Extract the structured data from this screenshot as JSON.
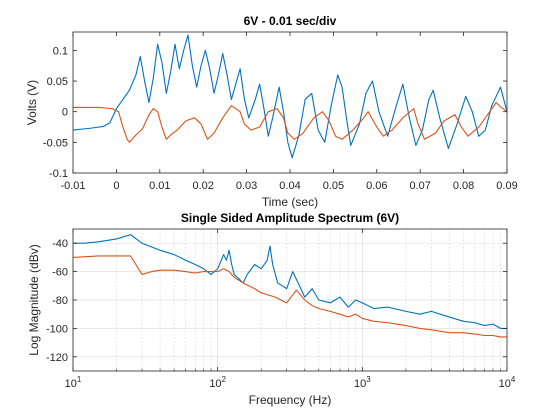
{
  "chart_data": [
    {
      "type": "line",
      "title": "6V - 0.01 sec/div",
      "xlabel": "Time (sec)",
      "ylabel": "Volts (V)",
      "xlim": [
        -0.01,
        0.09
      ],
      "ylim": [
        -0.1,
        0.13
      ],
      "xticks": [
        -0.01,
        0,
        0.01,
        0.02,
        0.03,
        0.04,
        0.05,
        0.06,
        0.07,
        0.08,
        0.09
      ],
      "xtick_labels": [
        "-0.01",
        "0",
        "0.01",
        "0.02",
        "0.03",
        "0.04",
        "0.05",
        "0.06",
        "0.07",
        "0.08",
        "0.09"
      ],
      "yticks": [
        -0.1,
        -0.05,
        0,
        0.05,
        0.1
      ],
      "ytick_labels": [
        "-0.1",
        "-0.05",
        "0",
        "0.05",
        "0.1"
      ],
      "grid": false,
      "series": [
        {
          "color": "#0072BD",
          "points": [
            [
              -0.01,
              -0.03
            ],
            [
              -0.006,
              -0.027
            ],
            [
              -0.003,
              -0.024
            ],
            [
              -0.0015,
              -0.018
            ],
            [
              0,
              0.005
            ],
            [
              0.0015,
              0.02
            ],
            [
              0.003,
              0.035
            ],
            [
              0.0045,
              0.06
            ],
            [
              0.0055,
              0.09
            ],
            [
              0.0065,
              0.05
            ],
            [
              0.0075,
              0.015
            ],
            [
              0.0085,
              0.055
            ],
            [
              0.0095,
              0.11
            ],
            [
              0.0105,
              0.08
            ],
            [
              0.0115,
              0.03
            ],
            [
              0.0125,
              0.065
            ],
            [
              0.0135,
              0.11
            ],
            [
              0.0145,
              0.07
            ],
            [
              0.0155,
              0.1
            ],
            [
              0.0165,
              0.125
            ],
            [
              0.0175,
              0.075
            ],
            [
              0.0185,
              0.04
            ],
            [
              0.0195,
              0.075
            ],
            [
              0.0205,
              0.1
            ],
            [
              0.0215,
              0.07
            ],
            [
              0.0225,
              0.03
            ],
            [
              0.0235,
              0.06
            ],
            [
              0.0245,
              0.095
            ],
            [
              0.0255,
              0.06
            ],
            [
              0.0265,
              0.02
            ],
            [
              0.0275,
              0.045
            ],
            [
              0.0285,
              0.07
            ],
            [
              0.0295,
              0.02
            ],
            [
              0.0305,
              -0.01
            ],
            [
              0.032,
              0.02
            ],
            [
              0.033,
              0.045
            ],
            [
              0.034,
              0.005
            ],
            [
              0.035,
              -0.04
            ],
            [
              0.036,
              -0.01
            ],
            [
              0.0375,
              0.04
            ],
            [
              0.0385,
              0.0
            ],
            [
              0.0395,
              -0.05
            ],
            [
              0.0405,
              -0.075
            ],
            [
              0.042,
              -0.04
            ],
            [
              0.0435,
              0.02
            ],
            [
              0.045,
              0.03
            ],
            [
              0.0465,
              -0.03
            ],
            [
              0.048,
              -0.05
            ],
            [
              0.0495,
              0.01
            ],
            [
              0.051,
              0.06
            ],
            [
              0.052,
              0.04
            ],
            [
              0.053,
              -0.01
            ],
            [
              0.054,
              -0.055
            ],
            [
              0.056,
              -0.02
            ],
            [
              0.0575,
              0.03
            ],
            [
              0.059,
              0.05
            ],
            [
              0.0605,
              0.0
            ],
            [
              0.0625,
              -0.04
            ],
            [
              0.0645,
              0.01
            ],
            [
              0.066,
              0.045
            ],
            [
              0.0675,
              -0.01
            ],
            [
              0.069,
              -0.055
            ],
            [
              0.0705,
              -0.03
            ],
            [
              0.072,
              0.02
            ],
            [
              0.073,
              0.035
            ],
            [
              0.0745,
              -0.01
            ],
            [
              0.0765,
              -0.06
            ],
            [
              0.0785,
              -0.02
            ],
            [
              0.0805,
              0.025
            ],
            [
              0.082,
              0.0
            ],
            [
              0.0835,
              -0.04
            ],
            [
              0.085,
              -0.03
            ],
            [
              0.0865,
              0.01
            ],
            [
              0.0875,
              0.025
            ],
            [
              0.0885,
              0.04
            ],
            [
              0.09,
              0.0
            ]
          ]
        },
        {
          "color": "#D95319",
          "points": [
            [
              -0.01,
              0.007
            ],
            [
              -0.004,
              0.007
            ],
            [
              -0.001,
              0.005
            ],
            [
              0.0005,
              0.0
            ],
            [
              0.0015,
              -0.025
            ],
            [
              0.0025,
              -0.045
            ],
            [
              0.003,
              -0.05
            ],
            [
              0.0045,
              -0.038
            ],
            [
              0.006,
              -0.028
            ],
            [
              0.0075,
              -0.005
            ],
            [
              0.0085,
              0.005
            ],
            [
              0.0095,
              0.0
            ],
            [
              0.0105,
              -0.025
            ],
            [
              0.0115,
              -0.045
            ],
            [
              0.0125,
              -0.038
            ],
            [
              0.014,
              -0.03
            ],
            [
              0.016,
              -0.015
            ],
            [
              0.018,
              -0.01
            ],
            [
              0.0195,
              -0.02
            ],
            [
              0.021,
              -0.045
            ],
            [
              0.0225,
              -0.035
            ],
            [
              0.0245,
              -0.01
            ],
            [
              0.0265,
              0.01
            ],
            [
              0.0285,
              0.0
            ],
            [
              0.0295,
              -0.02
            ],
            [
              0.031,
              -0.03
            ],
            [
              0.033,
              -0.025
            ],
            [
              0.035,
              0.0
            ],
            [
              0.037,
              0.005
            ],
            [
              0.0385,
              -0.01
            ],
            [
              0.0395,
              -0.035
            ],
            [
              0.041,
              -0.045
            ],
            [
              0.043,
              -0.035
            ],
            [
              0.0455,
              -0.01
            ],
            [
              0.0475,
              0.0
            ],
            [
              0.049,
              -0.015
            ],
            [
              0.0505,
              -0.04
            ],
            [
              0.052,
              -0.045
            ],
            [
              0.0545,
              -0.03
            ],
            [
              0.057,
              -0.01
            ],
            [
              0.058,
              0.0
            ],
            [
              0.06,
              -0.025
            ],
            [
              0.0615,
              -0.04
            ],
            [
              0.0635,
              -0.03
            ],
            [
              0.066,
              -0.01
            ],
            [
              0.0685,
              0.005
            ],
            [
              0.0695,
              -0.02
            ],
            [
              0.071,
              -0.045
            ],
            [
              0.0735,
              -0.035
            ],
            [
              0.0755,
              -0.015
            ],
            [
              0.078,
              -0.005
            ],
            [
              0.0795,
              -0.025
            ],
            [
              0.081,
              -0.04
            ],
            [
              0.0835,
              -0.025
            ],
            [
              0.0855,
              -0.005
            ],
            [
              0.0875,
              0.015
            ],
            [
              0.0885,
              0.008
            ],
            [
              0.09,
              0.0
            ]
          ]
        }
      ]
    },
    {
      "type": "line",
      "title": "Single Sided Amplitude Spectrum (6V)",
      "xlabel": "Frequency (Hz)",
      "ylabel": "Log Magnitude (dBv)",
      "xscale": "log",
      "xlim": [
        10,
        10000
      ],
      "ylim": [
        -130,
        -30
      ],
      "xticks": [
        10,
        100,
        1000,
        10000
      ],
      "xtick_labels": [
        {
          "base": "10",
          "exp": "1"
        },
        {
          "base": "10",
          "exp": "2"
        },
        {
          "base": "10",
          "exp": "3"
        },
        {
          "base": "10",
          "exp": "4"
        }
      ],
      "yticks": [
        -120,
        -100,
        -80,
        -60,
        -40
      ],
      "ytick_labels": [
        "-120",
        "-100",
        "-80",
        "-60",
        "-40"
      ],
      "grid": true,
      "series": [
        {
          "color": "#0072BD",
          "points": [
            [
              10,
              -40
            ],
            [
              12,
              -40
            ],
            [
              15,
              -39
            ],
            [
              20,
              -37
            ],
            [
              25,
              -34
            ],
            [
              30,
              -40
            ],
            [
              40,
              -45
            ],
            [
              50,
              -48
            ],
            [
              60,
              -52
            ],
            [
              70,
              -55
            ],
            [
              80,
              -58
            ],
            [
              90,
              -62
            ],
            [
              100,
              -58
            ],
            [
              110,
              -48
            ],
            [
              115,
              -52
            ],
            [
              120,
              -45
            ],
            [
              125,
              -55
            ],
            [
              130,
              -62
            ],
            [
              140,
              -65
            ],
            [
              150,
              -68
            ],
            [
              160,
              -62
            ],
            [
              180,
              -55
            ],
            [
              200,
              -58
            ],
            [
              220,
              -52
            ],
            [
              230,
              -42
            ],
            [
              240,
              -55
            ],
            [
              260,
              -68
            ],
            [
              300,
              -72
            ],
            [
              330,
              -60
            ],
            [
              360,
              -68
            ],
            [
              400,
              -78
            ],
            [
              450,
              -72
            ],
            [
              500,
              -80
            ],
            [
              600,
              -82
            ],
            [
              700,
              -78
            ],
            [
              800,
              -85
            ],
            [
              900,
              -80
            ],
            [
              1000,
              -82
            ],
            [
              1200,
              -86
            ],
            [
              1500,
              -85
            ],
            [
              2000,
              -88
            ],
            [
              2500,
              -90
            ],
            [
              3000,
              -88
            ],
            [
              4000,
              -92
            ],
            [
              5000,
              -95
            ],
            [
              6000,
              -96
            ],
            [
              7000,
              -98
            ],
            [
              8000,
              -97
            ],
            [
              9000,
              -100
            ],
            [
              10000,
              -100
            ]
          ]
        },
        {
          "color": "#D95319",
          "points": [
            [
              10,
              -50
            ],
            [
              15,
              -49
            ],
            [
              20,
              -49
            ],
            [
              25,
              -49
            ],
            [
              30,
              -62
            ],
            [
              35,
              -60
            ],
            [
              40,
              -59
            ],
            [
              50,
              -59
            ],
            [
              60,
              -60
            ],
            [
              70,
              -61
            ],
            [
              80,
              -60
            ],
            [
              100,
              -60
            ],
            [
              110,
              -58
            ],
            [
              120,
              -60
            ],
            [
              130,
              -64
            ],
            [
              150,
              -68
            ],
            [
              180,
              -72
            ],
            [
              200,
              -75
            ],
            [
              250,
              -78
            ],
            [
              300,
              -82
            ],
            [
              350,
              -73
            ],
            [
              400,
              -80
            ],
            [
              450,
              -84
            ],
            [
              500,
              -86
            ],
            [
              600,
              -88
            ],
            [
              700,
              -90
            ],
            [
              800,
              -92
            ],
            [
              900,
              -90
            ],
            [
              1000,
              -93
            ],
            [
              1200,
              -95
            ],
            [
              1500,
              -96
            ],
            [
              2000,
              -98
            ],
            [
              2500,
              -100
            ],
            [
              3000,
              -101
            ],
            [
              4000,
              -103
            ],
            [
              5000,
              -103
            ],
            [
              6000,
              -104
            ],
            [
              7000,
              -105
            ],
            [
              8000,
              -105
            ],
            [
              9000,
              -106
            ],
            [
              10000,
              -106
            ]
          ]
        }
      ]
    }
  ]
}
